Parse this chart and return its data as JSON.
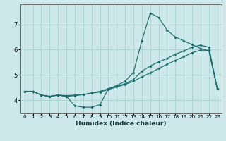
{
  "xlabel": "Humidex (Indice chaleur)",
  "bg_color": "#cce8ea",
  "grid_color": "#aacfcf",
  "line_color": "#1a6b6b",
  "xlim": [
    -0.5,
    23.5
  ],
  "ylim": [
    3.5,
    7.8
  ],
  "xticks": [
    0,
    1,
    2,
    3,
    4,
    5,
    6,
    7,
    8,
    9,
    10,
    11,
    12,
    13,
    14,
    15,
    16,
    17,
    18,
    19,
    20,
    21,
    22,
    23
  ],
  "yticks": [
    4,
    5,
    6,
    7
  ],
  "line1_x": [
    0,
    1,
    2,
    3,
    4,
    5,
    6,
    7,
    8,
    9,
    10,
    11,
    12,
    13,
    14,
    15,
    16,
    17,
    18,
    19,
    20,
    21,
    22,
    23
  ],
  "line1_y": [
    4.35,
    4.35,
    4.2,
    4.15,
    4.2,
    4.15,
    3.78,
    3.72,
    3.72,
    3.82,
    4.45,
    4.58,
    4.75,
    5.1,
    6.35,
    7.45,
    7.28,
    6.78,
    6.5,
    6.35,
    6.2,
    6.05,
    5.95,
    4.45
  ],
  "line2_x": [
    0,
    1,
    2,
    3,
    4,
    5,
    6,
    7,
    8,
    9,
    10,
    11,
    12,
    13,
    14,
    15,
    16,
    17,
    18,
    19,
    20,
    21,
    22,
    23
  ],
  "line2_y": [
    4.35,
    4.35,
    4.2,
    4.15,
    4.2,
    4.15,
    4.18,
    4.22,
    4.28,
    4.35,
    4.45,
    4.55,
    4.65,
    4.82,
    5.15,
    5.35,
    5.52,
    5.65,
    5.82,
    5.95,
    6.1,
    6.18,
    6.1,
    4.45
  ],
  "line3_x": [
    0,
    1,
    2,
    3,
    4,
    5,
    6,
    7,
    8,
    9,
    10,
    11,
    12,
    13,
    14,
    15,
    16,
    17,
    18,
    19,
    20,
    21,
    22,
    23
  ],
  "line3_y": [
    4.35,
    4.35,
    4.2,
    4.15,
    4.2,
    4.18,
    4.2,
    4.22,
    4.28,
    4.32,
    4.42,
    4.52,
    4.62,
    4.75,
    4.92,
    5.08,
    5.25,
    5.42,
    5.58,
    5.72,
    5.88,
    5.98,
    5.98,
    4.45
  ]
}
